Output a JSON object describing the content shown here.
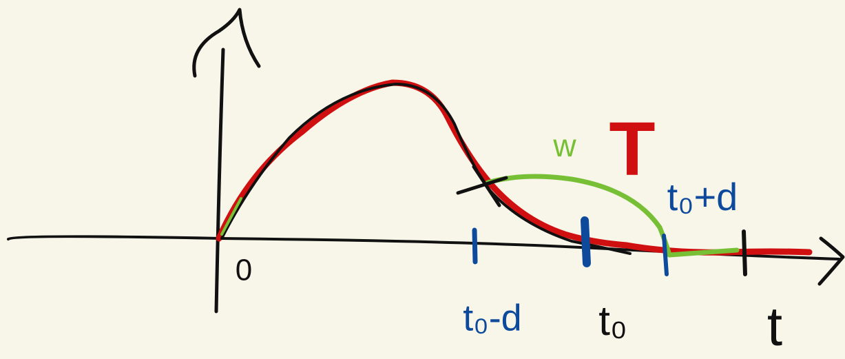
{
  "labels": {
    "origin": "0",
    "t0_minus_d": "t₀-d",
    "t0": "t₀",
    "t_axis": "t",
    "w": "w",
    "T": "T",
    "t0_plus_d": "t₀+d"
  }
}
